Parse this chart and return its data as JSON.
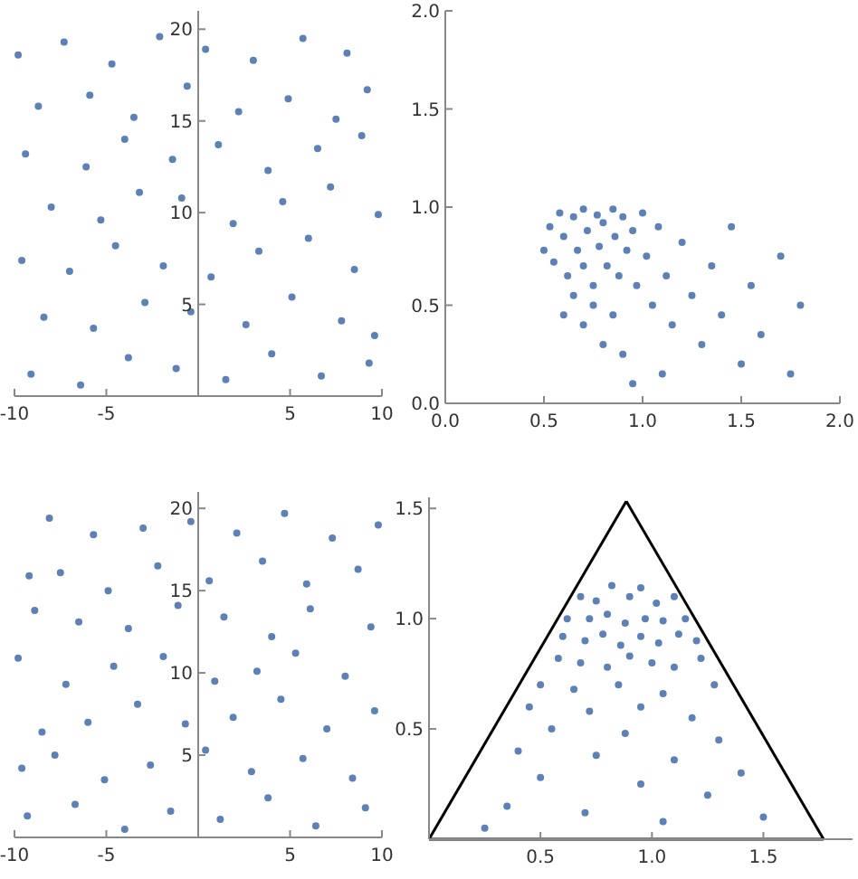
{
  "chart_data": [
    {
      "type": "scatter",
      "xlim": [
        -10,
        10
      ],
      "ylim": [
        0,
        21
      ],
      "xticks": [
        -10,
        -5,
        5,
        10
      ],
      "yticks": [
        5,
        10,
        15,
        20
      ],
      "marker": "circle",
      "series": [
        {
          "color": "#5e81b5",
          "x": [
            -9.1,
            -6.4,
            -3.8,
            -1.2,
            1.5,
            4.0,
            6.7,
            9.3,
            -8.4,
            -5.7,
            -2.9,
            -0.4,
            2.6,
            5.1,
            7.8,
            9.6,
            -9.6,
            -7.0,
            -4.5,
            -1.9,
            0.7,
            3.3,
            6.0,
            8.5,
            -8.0,
            -5.3,
            -3.2,
            -0.9,
            1.9,
            4.6,
            7.2,
            9.8,
            -9.4,
            -6.1,
            -4.0,
            -1.4,
            1.1,
            3.8,
            6.5,
            8.9,
            -8.7,
            -5.9,
            -3.5,
            -0.6,
            2.2,
            4.9,
            7.5,
            9.2,
            -9.8,
            -7.3,
            -4.7,
            -2.1,
            0.4,
            3.0,
            5.7,
            8.1
          ],
          "values": [
            1.2,
            0.6,
            2.1,
            1.5,
            0.9,
            2.3,
            1.1,
            1.8,
            4.3,
            3.7,
            5.1,
            4.6,
            3.9,
            5.4,
            4.1,
            3.3,
            7.4,
            6.8,
            8.2,
            7.1,
            6.5,
            7.9,
            8.6,
            6.9,
            10.3,
            9.6,
            11.1,
            10.8,
            9.4,
            10.6,
            11.4,
            9.9,
            13.2,
            12.5,
            14.0,
            12.9,
            13.7,
            12.3,
            13.5,
            14.2,
            15.8,
            16.4,
            15.2,
            16.9,
            15.5,
            16.2,
            15.1,
            16.7,
            18.6,
            19.3,
            18.1,
            19.6,
            18.9,
            18.3,
            19.5,
            18.7
          ]
        }
      ]
    },
    {
      "type": "scatter",
      "xlim": [
        0,
        2
      ],
      "ylim": [
        0,
        2
      ],
      "xticks": [
        {
          "value": 0,
          "label": "0.0"
        },
        {
          "value": 0.5,
          "label": "0.5"
        },
        {
          "value": 1,
          "label": "1.0"
        },
        {
          "value": 1.5,
          "label": "1.5"
        },
        {
          "value": 2,
          "label": "2.0"
        }
      ],
      "yticks": [
        {
          "value": 0,
          "label": "0.0"
        },
        {
          "value": 0.5,
          "label": "0.5"
        },
        {
          "value": 1,
          "label": "1.0"
        },
        {
          "value": 1.5,
          "label": "1.5"
        },
        {
          "value": 2,
          "label": "2.0"
        }
      ],
      "marker": "circle",
      "series": [
        {
          "color": "#5e81b5",
          "x": [
            0.5,
            0.53,
            0.55,
            0.58,
            0.6,
            0.62,
            0.65,
            0.67,
            0.7,
            0.7,
            0.72,
            0.75,
            0.77,
            0.78,
            0.8,
            0.82,
            0.85,
            0.86,
            0.88,
            0.9,
            0.92,
            0.95,
            0.97,
            1.0,
            1.02,
            1.05,
            1.08,
            1.12,
            1.15,
            1.2,
            1.25,
            1.3,
            1.35,
            1.4,
            1.45,
            1.5,
            1.55,
            1.6,
            1.7,
            1.75,
            1.8,
            0.6,
            0.7,
            0.8,
            0.9,
            0.95,
            1.1,
            0.65,
            0.75,
            0.85
          ],
          "values": [
            0.78,
            0.9,
            0.72,
            0.97,
            0.85,
            0.65,
            0.95,
            0.78,
            0.99,
            0.7,
            0.88,
            0.6,
            0.96,
            0.8,
            0.92,
            0.7,
            0.99,
            0.85,
            0.65,
            0.95,
            0.78,
            0.88,
            0.6,
            0.97,
            0.75,
            0.5,
            0.9,
            0.65,
            0.4,
            0.82,
            0.55,
            0.3,
            0.7,
            0.45,
            0.9,
            0.2,
            0.6,
            0.35,
            0.75,
            0.15,
            0.5,
            0.45,
            0.4,
            0.3,
            0.25,
            0.1,
            0.15,
            0.55,
            0.5,
            0.45
          ]
        }
      ]
    },
    {
      "type": "scatter",
      "xlim": [
        -10,
        10
      ],
      "ylim": [
        0,
        21
      ],
      "xticks": [
        -10,
        -5,
        5,
        10
      ],
      "yticks": [
        5,
        10,
        15,
        20
      ],
      "marker": "circle",
      "series": [
        {
          "color": "#5e81b5",
          "x": [
            9.1,
            6.4,
            3.8,
            1.2,
            -1.5,
            -4.0,
            -6.7,
            -9.3,
            8.4,
            5.7,
            2.9,
            0.4,
            -2.6,
            -5.1,
            -7.8,
            -9.6,
            9.6,
            7.0,
            4.5,
            1.9,
            -0.7,
            -3.3,
            -6.0,
            -8.5,
            8.0,
            5.3,
            3.2,
            0.9,
            -1.9,
            -4.6,
            -7.2,
            -9.8,
            9.4,
            6.1,
            4.0,
            1.4,
            -1.1,
            -3.8,
            -6.5,
            -8.9,
            8.7,
            5.9,
            3.5,
            0.6,
            -2.2,
            -4.9,
            -7.5,
            -9.2,
            9.8,
            7.3,
            4.7,
            2.1,
            -0.4,
            -3.0,
            -5.7,
            -8.1
          ],
          "values": [
            1.8,
            0.7,
            2.4,
            1.1,
            1.6,
            0.5,
            2.0,
            1.3,
            3.6,
            4.8,
            4.0,
            5.3,
            4.4,
            3.5,
            5.0,
            4.2,
            7.7,
            6.6,
            8.4,
            7.3,
            6.9,
            8.1,
            7.0,
            6.4,
            9.8,
            11.2,
            10.1,
            9.5,
            11.0,
            10.4,
            9.3,
            10.9,
            12.8,
            13.9,
            12.2,
            13.4,
            14.1,
            12.7,
            13.1,
            13.8,
            16.3,
            15.4,
            16.8,
            15.6,
            16.5,
            15.0,
            16.1,
            15.9,
            19.0,
            18.2,
            19.7,
            18.5,
            19.2,
            18.8,
            18.4,
            19.4
          ]
        }
      ]
    },
    {
      "type": "scatter",
      "xlim": [
        0,
        1.9
      ],
      "ylim": [
        0,
        1.55
      ],
      "xticks": [
        0.5,
        {
          "value": 1,
          "label": "1.0"
        },
        1.5
      ],
      "yticks": [
        0.5,
        {
          "value": 1,
          "label": "1.0"
        },
        1.5
      ],
      "series": [
        {
          "type": "scatter",
          "marker": "circle",
          "color": "#5e81b5",
          "x": [
            0.68,
            0.75,
            0.82,
            0.9,
            0.95,
            1.02,
            1.1,
            0.62,
            0.72,
            0.8,
            0.88,
            0.97,
            1.05,
            1.15,
            0.6,
            0.7,
            0.78,
            0.86,
            0.95,
            1.03,
            1.12,
            1.2,
            0.58,
            0.68,
            0.8,
            0.9,
            1.0,
            1.1,
            1.22,
            0.5,
            0.65,
            0.85,
            1.05,
            1.28,
            0.45,
            0.72,
            0.95,
            1.18,
            0.55,
            0.88,
            1.3,
            0.4,
            0.75,
            1.1,
            1.4,
            0.5,
            0.95,
            1.25,
            0.35,
            0.7,
            1.05,
            1.5,
            0.25
          ],
          "values": [
            1.1,
            1.08,
            1.15,
            1.1,
            1.14,
            1.07,
            1.1,
            1.0,
            1.0,
            1.02,
            0.98,
            1.0,
            0.99,
            1.0,
            0.92,
            0.9,
            0.93,
            0.88,
            0.92,
            0.89,
            0.93,
            0.9,
            0.82,
            0.8,
            0.78,
            0.83,
            0.8,
            0.78,
            0.82,
            0.7,
            0.68,
            0.7,
            0.66,
            0.7,
            0.6,
            0.58,
            0.6,
            0.55,
            0.5,
            0.48,
            0.45,
            0.4,
            0.38,
            0.36,
            0.3,
            0.28,
            0.25,
            0.2,
            0.15,
            0.12,
            0.08,
            0.1,
            0.05
          ]
        },
        {
          "type": "line",
          "marker": "none",
          "color": "#000000",
          "x": [
            0,
            0.885
          ],
          "values": [
            0,
            1.533
          ]
        },
        {
          "type": "line",
          "marker": "none",
          "color": "#000000",
          "x": [
            0.885,
            1.77
          ],
          "values": [
            1.533,
            0
          ]
        },
        {
          "type": "line",
          "marker": "none",
          "color": "#000000",
          "x": [
            0,
            1.77
          ],
          "values": [
            0,
            0
          ]
        }
      ]
    }
  ]
}
